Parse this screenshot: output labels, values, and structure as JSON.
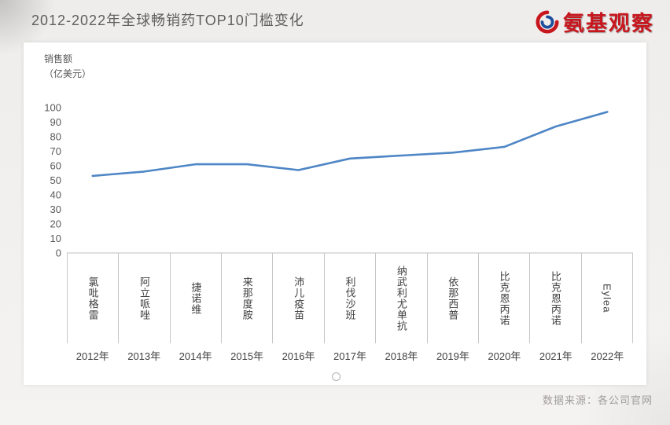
{
  "page": {
    "title": "2012-2022年全球畅销药TOP10门槛变化",
    "source": "数据来源：各公司官网"
  },
  "logo": {
    "text": "氨基观察",
    "accent_color": "#c8161e",
    "secondary_color": "#1d4f9c"
  },
  "chart_data": {
    "type": "line",
    "title": "2012-2022年全球畅销药TOP10门槛变化",
    "ylabel_line1": "销售额",
    "ylabel_line2": "（亿美元）",
    "ylim": [
      0,
      100
    ],
    "ytick_step": 10,
    "grid": false,
    "legend": "none",
    "line_color": "#4e86c6",
    "categories": [
      "2012年",
      "2013年",
      "2014年",
      "2015年",
      "2016年",
      "2017年",
      "2018年",
      "2019年",
      "2020年",
      "2021年",
      "2022年"
    ],
    "drugs": [
      "氯吡格雷",
      "阿立哌唑",
      "捷诺维",
      "来那度胺",
      "沛儿疫苗",
      "利伐沙班",
      "纳武利尤单抗",
      "依那西普",
      "比克恩丙诺",
      "比克恩丙诺",
      "Eylea"
    ],
    "values": [
      53,
      56,
      61,
      61,
      57,
      65,
      67,
      69,
      73,
      87,
      97
    ]
  }
}
